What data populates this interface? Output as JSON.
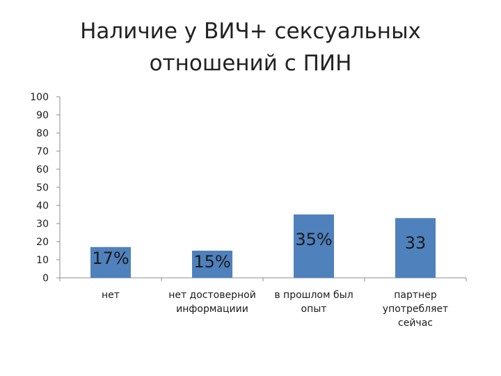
{
  "chart_data": {
    "type": "bar",
    "title": "Наличие у ВИЧ+ сексуальных отношений с ПИН",
    "title_lines": [
      "Наличие у ВИЧ+ сексуальных",
      "отношений с ПИН"
    ],
    "categories": [
      [
        "нет"
      ],
      [
        "нет достоверной",
        "информациии"
      ],
      [
        "в прошлом был",
        "опыт"
      ],
      [
        "партнер",
        "употребляет",
        "сейчас"
      ]
    ],
    "values": [
      17,
      15,
      35,
      33
    ],
    "data_labels": [
      "17%",
      "15%",
      "35%",
      "33"
    ],
    "xlabel": "",
    "ylabel": "",
    "ylim": [
      0,
      100
    ],
    "yticks": [
      0,
      10,
      20,
      30,
      40,
      50,
      60,
      70,
      80,
      90,
      100
    ],
    "grid": false,
    "legend": "none",
    "bar_color": "#4f81bd"
  }
}
